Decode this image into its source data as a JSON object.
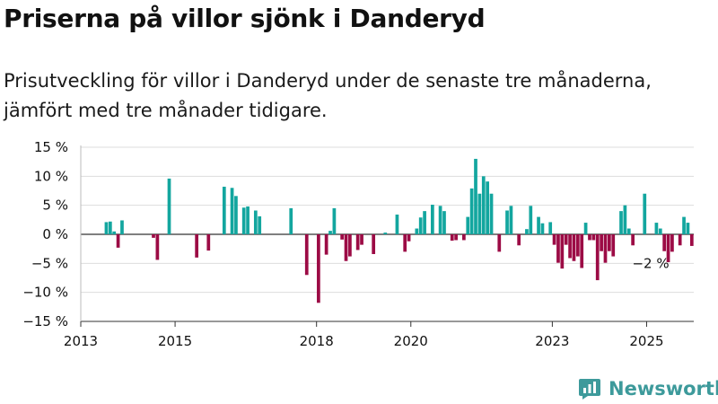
{
  "header": {
    "title": "Priserna på villor sjönk i Danderyd",
    "subtitle": "Prisutveckling för villor i Danderyd under de senaste tre månaderna, jämfört med tre månader tidigare."
  },
  "brand": {
    "name": "Newsworthy"
  },
  "colors": {
    "positive": "#13a69f",
    "negative": "#9c0b45",
    "grid": "#dddddd",
    "axis": "#333333",
    "brand": "#3d9a9b"
  },
  "chart_data": {
    "type": "bar",
    "x_unit": "month",
    "ylim": [
      -15,
      15
    ],
    "yticks": [
      -15,
      -10,
      -5,
      0,
      5,
      10,
      15
    ],
    "ytick_labels": [
      "−15 %",
      "−10 %",
      "−5 %",
      "0 %",
      "5 %",
      "10 %",
      "15 %"
    ],
    "xlim": [
      "2013-01",
      "2025-12"
    ],
    "xticks": [
      "2013-01",
      "2015-01",
      "2018-01",
      "2020-01",
      "2023-01",
      "2025-01"
    ],
    "xtick_labels": [
      "2013",
      "2015",
      "2018",
      "2020",
      "2023",
      "2025"
    ],
    "grid": true,
    "legend": "none",
    "annotation": {
      "text": "−2 %",
      "x": "2025-01"
    },
    "points": [
      [
        "2013-07",
        2.1
      ],
      [
        "2013-08",
        2.2
      ],
      [
        "2013-09",
        0.5
      ],
      [
        "2013-10",
        -2.3
      ],
      [
        "2013-11",
        2.4
      ],
      [
        "2014-07",
        -0.6
      ],
      [
        "2014-08",
        -4.4
      ],
      [
        "2014-11",
        9.6
      ],
      [
        "2015-06",
        -4.0
      ],
      [
        "2015-09",
        -2.8
      ],
      [
        "2016-01",
        8.2
      ],
      [
        "2016-03",
        8.0
      ],
      [
        "2016-04",
        6.6
      ],
      [
        "2016-06",
        4.6
      ],
      [
        "2016-07",
        4.8
      ],
      [
        "2016-09",
        4.1
      ],
      [
        "2016-10",
        3.1
      ],
      [
        "2017-06",
        4.5
      ],
      [
        "2017-10",
        -7.0
      ],
      [
        "2018-01",
        -11.8
      ],
      [
        "2018-03",
        -3.5
      ],
      [
        "2018-04",
        0.6
      ],
      [
        "2018-05",
        4.5
      ],
      [
        "2018-07",
        -0.9
      ],
      [
        "2018-08",
        -4.6
      ],
      [
        "2018-09",
        -3.8
      ],
      [
        "2018-11",
        -2.7
      ],
      [
        "2018-12",
        -1.8
      ],
      [
        "2019-03",
        -3.4
      ],
      [
        "2019-06",
        0.3
      ],
      [
        "2019-09",
        3.4
      ],
      [
        "2019-11",
        -3.0
      ],
      [
        "2019-12",
        -1.2
      ],
      [
        "2020-02",
        1.0
      ],
      [
        "2020-03",
        2.9
      ],
      [
        "2020-04",
        4.0
      ],
      [
        "2020-06",
        5.1
      ],
      [
        "2020-08",
        4.9
      ],
      [
        "2020-09",
        4.0
      ],
      [
        "2020-11",
        -1.1
      ],
      [
        "2020-12",
        -1.0
      ],
      [
        "2021-02",
        -1.0
      ],
      [
        "2021-03",
        3.0
      ],
      [
        "2021-04",
        7.9
      ],
      [
        "2021-05",
        13.0
      ],
      [
        "2021-06",
        7.0
      ],
      [
        "2021-07",
        10.0
      ],
      [
        "2021-08",
        9.1
      ],
      [
        "2021-09",
        7.0
      ],
      [
        "2021-11",
        -3.0
      ],
      [
        "2022-01",
        4.1
      ],
      [
        "2022-02",
        4.9
      ],
      [
        "2022-04",
        -1.9
      ],
      [
        "2022-06",
        0.9
      ],
      [
        "2022-07",
        4.9
      ],
      [
        "2022-09",
        3.0
      ],
      [
        "2022-10",
        1.9
      ],
      [
        "2022-12",
        2.1
      ],
      [
        "2023-01",
        -1.8
      ],
      [
        "2023-02",
        -4.9
      ],
      [
        "2023-03",
        -5.9
      ],
      [
        "2023-04",
        -1.8
      ],
      [
        "2023-05",
        -4.1
      ],
      [
        "2023-06",
        -4.6
      ],
      [
        "2023-07",
        -3.8
      ],
      [
        "2023-08",
        -5.8
      ],
      [
        "2023-09",
        2.0
      ],
      [
        "2023-10",
        -1.0
      ],
      [
        "2023-11",
        -1.0
      ],
      [
        "2023-12",
        -7.9
      ],
      [
        "2024-01",
        -2.9
      ],
      [
        "2024-02",
        -4.9
      ],
      [
        "2024-03",
        -2.9
      ],
      [
        "2024-04",
        -3.8
      ],
      [
        "2024-06",
        4.0
      ],
      [
        "2024-07",
        5.0
      ],
      [
        "2024-08",
        1.0
      ],
      [
        "2024-09",
        -1.9
      ],
      [
        "2024-12",
        7.0
      ],
      [
        "2025-03",
        2.0
      ],
      [
        "2025-04",
        1.0
      ],
      [
        "2025-05",
        -2.9
      ],
      [
        "2025-06",
        -4.8
      ],
      [
        "2025-07",
        -3.0
      ],
      [
        "2025-09",
        -1.9
      ],
      [
        "2025-10",
        3.0
      ],
      [
        "2025-11",
        2.0
      ],
      [
        "2025-12",
        -2.0
      ]
    ]
  }
}
